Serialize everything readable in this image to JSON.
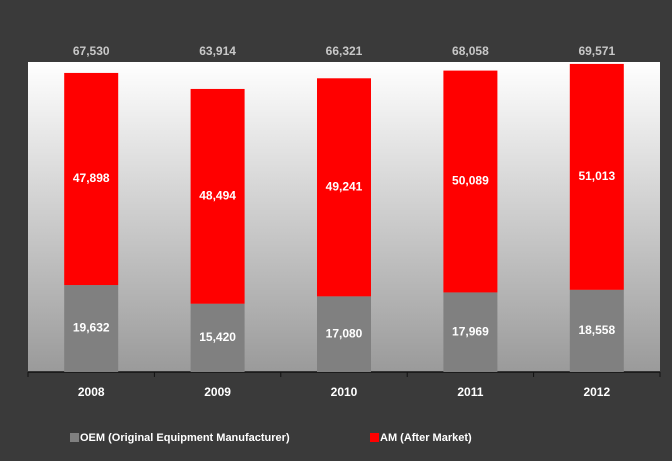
{
  "chart_data": {
    "type": "stacked_bar",
    "categories": [
      "2008",
      "2009",
      "2010",
      "2011",
      "2012"
    ],
    "series": [
      {
        "name": "OEM (Original Equipment Manufacturer)",
        "color": "#808080",
        "values": [
          19632,
          15420,
          17080,
          17969,
          18558
        ],
        "value_labels": [
          "19,632",
          "15,420",
          "17,080",
          "17,969",
          "18,558"
        ]
      },
      {
        "name": "AM (After Market)",
        "color": "#ff0000",
        "values": [
          47898,
          48494,
          49241,
          50089,
          51013
        ],
        "value_labels": [
          "47,898",
          "48,494",
          "49,241",
          "50,089",
          "51,013"
        ]
      }
    ],
    "totals": [
      67530,
      63914,
      66321,
      68058,
      69571
    ],
    "total_labels": [
      "67,530",
      "63,914",
      "66,321",
      "68,058",
      "69,571"
    ],
    "ylim": [
      0,
      70000
    ]
  }
}
